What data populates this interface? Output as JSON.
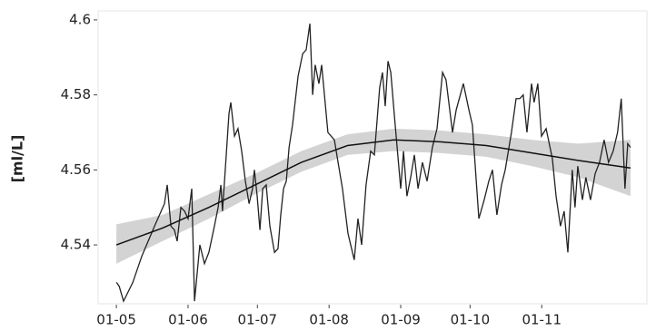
{
  "chart_data": {
    "type": "line",
    "ylabel": "[ml/L]",
    "x": [
      0,
      1.2,
      3.1,
      7.1,
      11,
      16.5,
      20.8,
      22,
      23.6,
      25.1,
      26.3,
      27.9,
      29.5,
      31,
      32.6,
      33.8,
      36.1,
      38.1,
      40,
      42.4,
      44,
      45.2,
      45.9,
      47.1,
      48.7,
      49.5,
      51.1,
      52.6,
      54.2,
      55.8,
      57.4,
      58.9,
      59.7,
      60.9,
      62.1,
      63.3,
      64.8,
      66.4,
      68.4,
      69.9,
      71.1,
      72.3,
      73.5,
      74.7,
      76.2,
      78.6,
      80.6,
      82.1,
      83.7,
      84.9,
      86,
      87.6,
      88.8,
      91.5,
      94.3,
      95.9,
      97.8,
      100.2,
      102.9,
      104.5,
      106.1,
      108,
      110,
      111.6,
      113.9,
      115.1,
      116.3,
      117.5,
      118.7,
      120.6,
      123,
      124.2,
      125.7,
      127.3,
      128.9,
      130.5,
      132.4,
      134.4,
      136.7,
      138.7,
      141.1,
      142.6,
      145.4,
      147,
      150.1,
      152.5,
      154,
      156.8,
      159.1,
      161.1,
      162.7,
      164.6,
      166.6,
      168.2,
      170.9,
      172.9,
      174.5,
      176,
      177.6,
      179.6,
      180.7,
      182.3,
      183.9,
      185.9,
      188.6,
      190.2,
      192.1,
      193.7,
      195.3,
      197.2,
      198.4,
      199.6,
      201.6,
      203.1,
      205.1,
      207.1,
      209,
      211,
      212.9,
      214.9,
      216.8,
      218.4,
      220,
      221.2,
      222.4
    ],
    "series": [
      {
        "color": "#222222",
        "values": [
          4.53,
          4.529,
          4.525,
          4.53,
          4.537,
          4.545,
          4.551,
          4.556,
          4.545,
          4.544,
          4.541,
          4.55,
          4.549,
          4.547,
          4.555,
          4.525,
          4.54,
          4.535,
          4.538,
          4.545,
          4.55,
          4.556,
          4.549,
          4.56,
          4.575,
          4.578,
          4.569,
          4.571,
          4.565,
          4.557,
          4.551,
          4.555,
          4.56,
          4.553,
          4.544,
          4.555,
          4.556,
          4.545,
          4.538,
          4.539,
          4.548,
          4.555,
          4.557,
          4.566,
          4.572,
          4.585,
          4.591,
          4.592,
          4.599,
          4.58,
          4.588,
          4.583,
          4.588,
          4.57,
          4.568,
          4.562,
          4.555,
          4.543,
          4.536,
          4.547,
          4.54,
          4.556,
          4.565,
          4.564,
          4.582,
          4.586,
          4.577,
          4.589,
          4.586,
          4.572,
          4.555,
          4.565,
          4.553,
          4.558,
          4.564,
          4.555,
          4.562,
          4.557,
          4.566,
          4.571,
          4.586,
          4.584,
          4.57,
          4.576,
          4.583,
          4.576,
          4.572,
          4.547,
          4.552,
          4.557,
          4.56,
          4.548,
          4.556,
          4.56,
          4.57,
          4.579,
          4.579,
          4.58,
          4.57,
          4.583,
          4.578,
          4.583,
          4.569,
          4.571,
          4.563,
          4.553,
          4.545,
          4.549,
          4.538,
          4.56,
          4.55,
          4.561,
          4.552,
          4.558,
          4.552,
          4.559,
          4.562,
          4.568,
          4.562,
          4.565,
          4.57,
          4.579,
          4.555,
          4.567,
          4.566
        ]
      }
    ],
    "fit": {
      "color": "#111111",
      "band_color": "#d3d3d3",
      "x": [
        0,
        20,
        40,
        60,
        80,
        100,
        120,
        140,
        160,
        180,
        200,
        222.4
      ],
      "values": [
        4.54,
        4.5445,
        4.55,
        4.556,
        4.562,
        4.5665,
        4.568,
        4.5675,
        4.5665,
        4.5645,
        4.5625,
        4.5605
      ],
      "lower": [
        4.535,
        4.541,
        4.547,
        4.5535,
        4.5595,
        4.564,
        4.565,
        4.5645,
        4.5635,
        4.561,
        4.558,
        4.553
      ],
      "upper": [
        4.5455,
        4.548,
        4.5535,
        4.559,
        4.565,
        4.5695,
        4.571,
        4.5705,
        4.5695,
        4.568,
        4.567,
        4.568
      ]
    },
    "xlim": [
      -7.9,
      229.5
    ],
    "xticks": [
      {
        "value": 0,
        "label": "01-05"
      },
      {
        "value": 31,
        "label": "01-06"
      },
      {
        "value": 61,
        "label": "01-07"
      },
      {
        "value": 92,
        "label": "01-08"
      },
      {
        "value": 123,
        "label": "01-09"
      },
      {
        "value": 153,
        "label": "01-10"
      },
      {
        "value": 184,
        "label": "01-11"
      }
    ],
    "ylim": [
      4.5243,
      4.6024
    ],
    "yticks": [
      4.54,
      4.56,
      4.58,
      4.6
    ],
    "grid": false
  }
}
